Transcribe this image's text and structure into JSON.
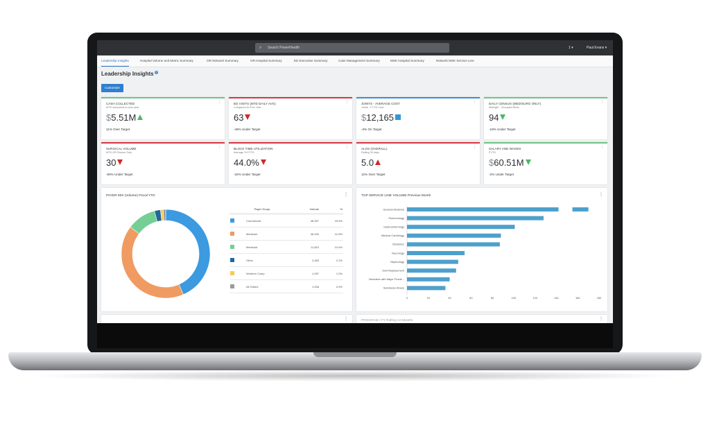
{
  "topbar": {
    "search_placeholder": "Search PowerHealth",
    "alerts_label": "1 ▾",
    "user_label": "Paul Evans ▾"
  },
  "tabs": [
    {
      "label": "Leadership Insights",
      "active": true
    },
    {
      "label": "Hospital Volume and Metric Summary"
    },
    {
      "label": "OR Network Summary"
    },
    {
      "label": "OR Hospital Summary"
    },
    {
      "label": "ED Executive Summary"
    },
    {
      "label": "Case Management Summary"
    },
    {
      "label": "MSK Hospital Summary"
    },
    {
      "label": "Network MSK Service Line"
    }
  ],
  "page": {
    "title": "Leadership Insights",
    "info_icon": "i",
    "customize_label": "Customize"
  },
  "kpis": [
    {
      "title": "CASH COLLECTED",
      "subtitle": "MTD compared to prior year",
      "currency": "$",
      "value": "5.51M",
      "indicator": "up-green",
      "footer": "11% Over Target",
      "accent": "#6cc584"
    },
    {
      "title": "ED VISITS (MTD DAILY AVG)",
      "subtitle": "Compared to Prior Year",
      "currency": "",
      "value": "63",
      "indicator": "down-red",
      "footer": "-48% Under Target",
      "accent": "#d9363e"
    },
    {
      "title": "JOINTS - AVERAGE COST",
      "subtitle": "Joints - FYTD Cost",
      "currency": "$",
      "value": "12,165",
      "indicator": "square-blue",
      "footer": "-3% On Target",
      "accent": "#3b8ed6"
    },
    {
      "title": "DAILY CENSUS (MED/SURG ONLY)",
      "subtitle": "Midnight - Occupied Beds",
      "currency": "",
      "value": "94",
      "indicator": "down-green",
      "footer": "-18% Under Target",
      "accent": "#6cc584"
    },
    {
      "title": "SURGICAL VOLUME",
      "subtitle": "MTD OR Rooms Only",
      "currency": "",
      "value": "30",
      "indicator": "down-red",
      "footer": "-80% Under Target",
      "accent": "#d9363e"
    },
    {
      "title": "BLOCK TIME UTILIZATION",
      "subtitle": "Average % FYTD",
      "currency": "",
      "value": "44.0%",
      "indicator": "down-red",
      "footer": "-32% Under Target",
      "accent": "#d9363e"
    },
    {
      "title": "ALOS (OVERALL)",
      "subtitle": "Rolling 30 days",
      "currency": "",
      "value": "5.0",
      "indicator": "up-red",
      "footer": "12% Over Target",
      "accent": "#d9363e"
    },
    {
      "title": "SALARY AND WAGES",
      "subtitle": "FYTD",
      "currency": "$",
      "value": "60.51M",
      "indicator": "down-green",
      "footer": "-2% Under Target",
      "accent": "#6cc584"
    }
  ],
  "payer_mix": {
    "title": "PAYER MIX (Volume) Fiscal YTD",
    "headers": [
      "Payer Group",
      "Volume",
      "%"
    ],
    "rows": [
      {
        "group": "Commercial",
        "volume": "48,357",
        "pct": "43.5%",
        "share": 43.5,
        "color": "#3b9ae0"
      },
      {
        "group": "Medicare",
        "volume": "46,430",
        "pct": "41.8%",
        "share": 41.8,
        "color": "#ef9b62"
      },
      {
        "group": "Medicaid",
        "volume": "11,810",
        "pct": "10.6%",
        "share": 10.6,
        "color": "#74cf95"
      },
      {
        "group": "Other",
        "volume": "2,483",
        "pct": "2.2%",
        "share": 2.2,
        "color": "#24689a"
      },
      {
        "group": "Workers Comp",
        "volume": "1,057",
        "pct": "1.0%",
        "share": 1.0,
        "color": "#f5cc52"
      },
      {
        "group": "All Others",
        "volume": "1,006",
        "pct": "0.9%",
        "share": 0.9,
        "color": "#9a9a9a"
      }
    ]
  },
  "chart_data": {
    "type": "bar",
    "orientation": "horizontal",
    "title": "TOP SERVICE LINE VOLUME Previous Month",
    "categories": [
      "General Medicine",
      "Pulmonology",
      "Gastroenterology",
      "Medical Cardiology",
      "Obstetrics",
      "Neurology",
      "Nephrology",
      "Joint Replacement",
      "Neonates with Major Proble...",
      "Substance Abuse"
    ],
    "values": [
      170,
      128,
      101,
      88,
      87,
      54,
      48,
      46,
      40,
      36
    ],
    "xlim": [
      0,
      180
    ],
    "xticks": [
      0,
      20,
      40,
      60,
      80,
      100,
      120,
      140,
      160,
      180
    ],
    "color": "#4ea0cc",
    "axis_break": [
      142,
      155
    ],
    "grid": false
  },
  "bottom_panels": {
    "left_title": "",
    "right_title": "PROGRAM / FY Rolling 12 Months"
  }
}
